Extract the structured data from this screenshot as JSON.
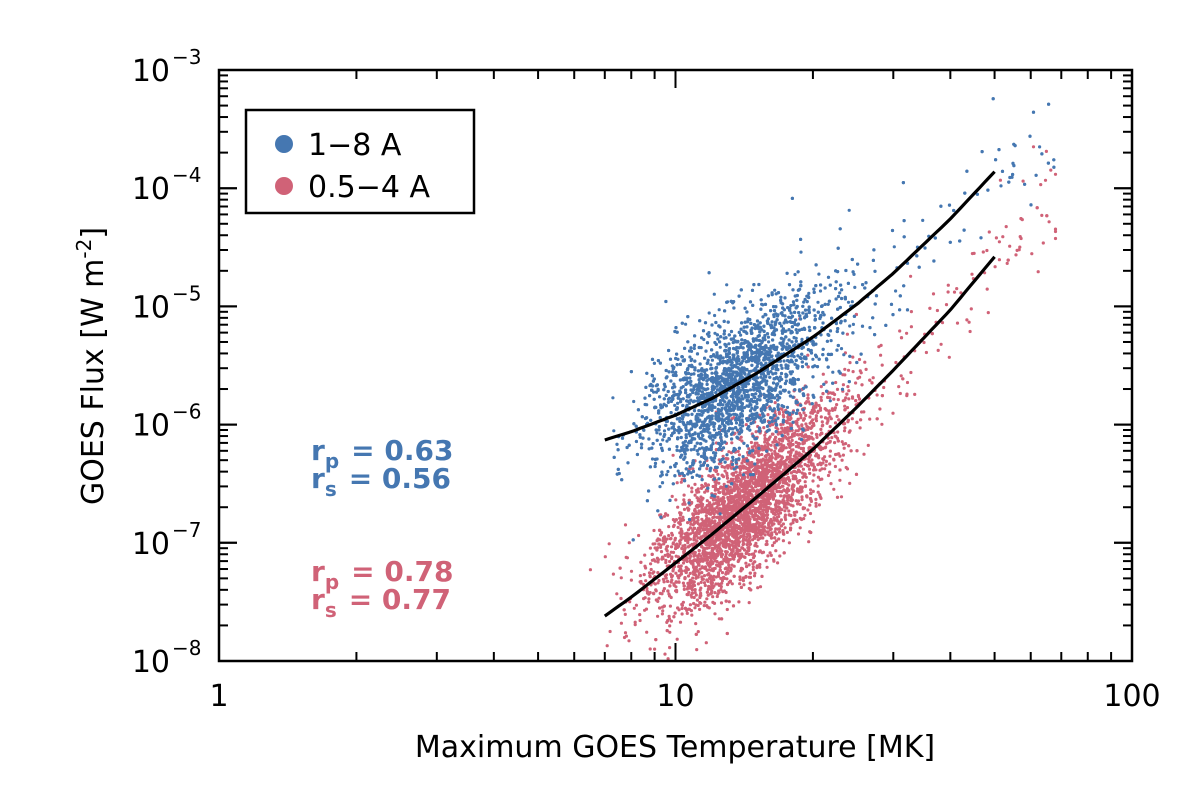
{
  "chart_data": {
    "type": "scatter",
    "xlabel": "Maximum GOES Temperature [MK]",
    "ylabel": "GOES Flux [W m",
    "ylabel_exp": "-2",
    "ylabel_close": "]",
    "xscale": "log",
    "yscale": "log",
    "xlim": [
      1,
      100
    ],
    "ylim_exp": [
      -8,
      -3
    ],
    "x_ticks": [
      {
        "value": 1,
        "label": "1"
      },
      {
        "value": 10,
        "label": "10"
      },
      {
        "value": 100,
        "label": "100"
      }
    ],
    "y_ticks": [
      {
        "exp": -8,
        "base": "10",
        "sup": "−8"
      },
      {
        "exp": -7,
        "base": "10",
        "sup": "−7"
      },
      {
        "exp": -6,
        "base": "10",
        "sup": "−6"
      },
      {
        "exp": -5,
        "base": "10",
        "sup": "−5"
      },
      {
        "exp": -4,
        "base": "10",
        "sup": "−4"
      },
      {
        "exp": -3,
        "base": "10",
        "sup": "−3"
      }
    ],
    "legend_position": "top-left",
    "series": [
      {
        "name": "1−8 A",
        "color": "#4577b1",
        "n_points": 3800,
        "fit": {
          "x": [
            7,
            8,
            10,
            12,
            15,
            20,
            25,
            30,
            40,
            50
          ],
          "y_exp": [
            -6.13,
            -6.06,
            -5.92,
            -5.78,
            -5.57,
            -5.26,
            -4.98,
            -4.72,
            -4.26,
            -3.86
          ]
        },
        "stats": {
          "rp_label": "r",
          "rp_sub": "p",
          "rp_value": "= 0.63",
          "rs_label": "r",
          "rs_sub": "s",
          "rs_value": "= 0.56"
        }
      },
      {
        "name": "0.5−4 A",
        "color": "#d06277",
        "n_points": 3800,
        "fit": {
          "x": [
            7,
            8,
            10,
            12,
            15,
            20,
            25,
            30,
            40,
            50
          ],
          "y_exp": [
            -7.62,
            -7.46,
            -7.17,
            -6.93,
            -6.62,
            -6.21,
            -5.85,
            -5.54,
            -5.03,
            -4.58
          ]
        },
        "stats": {
          "rp_label": "r",
          "rp_sub": "p",
          "rp_value": "= 0.78",
          "rs_label": "r",
          "rs_sub": "s",
          "rs_value": "= 0.77"
        }
      }
    ]
  }
}
